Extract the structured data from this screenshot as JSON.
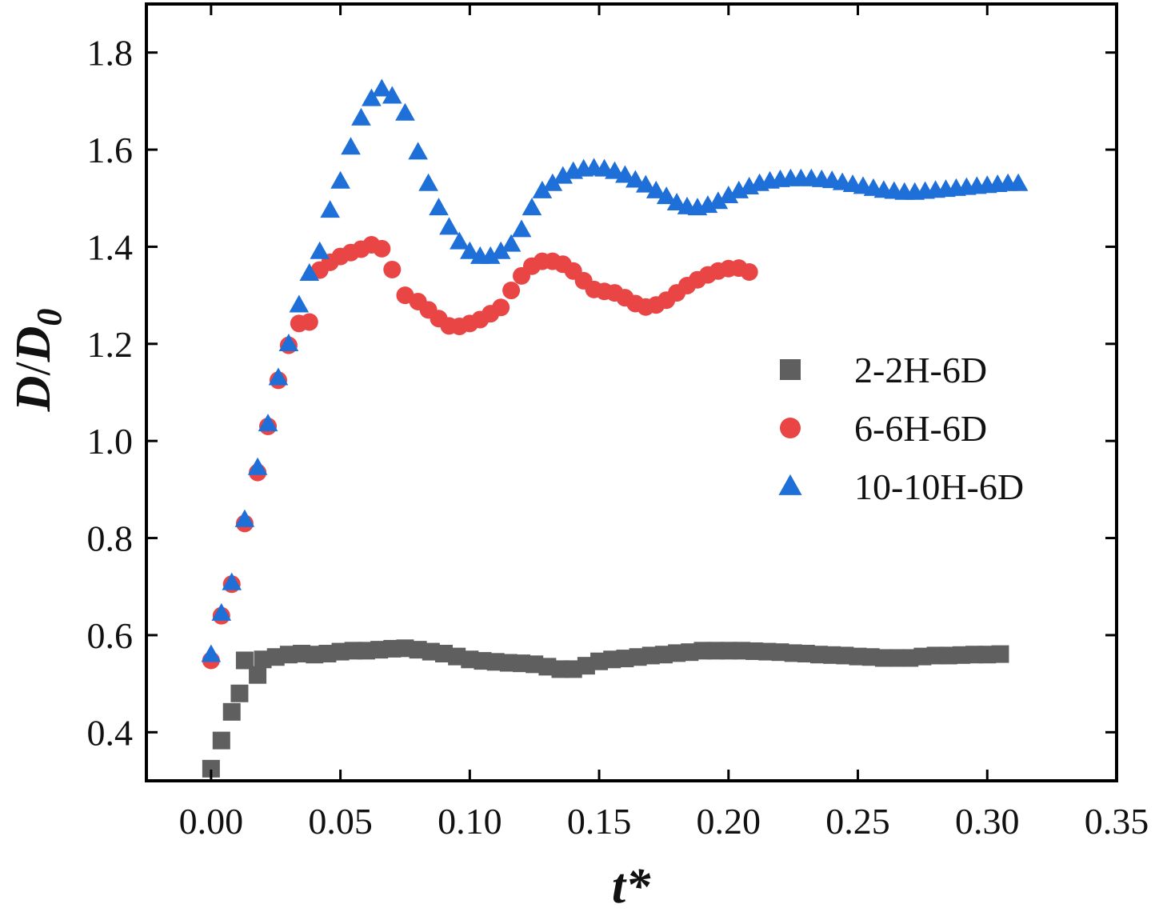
{
  "chart_data": {
    "type": "scatter",
    "xlabel": "t*",
    "ylabel_main": "D",
    "ylabel_sep": "/",
    "ylabel_den": "D",
    "ylabel_sub": "0",
    "xlim": [
      -0.025,
      0.35
    ],
    "ylim": [
      0.3,
      1.9
    ],
    "x_ticks": [
      "0.00",
      "0.05",
      "0.10",
      "0.15",
      "0.20",
      "0.25",
      "0.30",
      "0.35"
    ],
    "y_ticks": [
      "0.4",
      "0.6",
      "0.8",
      "1.0",
      "1.2",
      "1.4",
      "1.6",
      "1.8"
    ],
    "grid": false,
    "legend_position": "center-right",
    "series": [
      {
        "name": "2-2H-6D",
        "marker": "square",
        "color": "#5f5f5f",
        "points": [
          [
            0.0,
            0.325
          ],
          [
            0.004,
            0.383
          ],
          [
            0.008,
            0.442
          ],
          [
            0.011,
            0.48
          ],
          [
            0.013,
            0.548
          ],
          [
            0.018,
            0.518
          ],
          [
            0.02,
            0.55
          ],
          [
            0.025,
            0.555
          ],
          [
            0.03,
            0.56
          ],
          [
            0.035,
            0.562
          ],
          [
            0.04,
            0.56
          ],
          [
            0.045,
            0.562
          ],
          [
            0.05,
            0.566
          ],
          [
            0.055,
            0.568
          ],
          [
            0.06,
            0.568
          ],
          [
            0.065,
            0.57
          ],
          [
            0.07,
            0.572
          ],
          [
            0.075,
            0.573
          ],
          [
            0.08,
            0.57
          ],
          [
            0.085,
            0.566
          ],
          [
            0.09,
            0.562
          ],
          [
            0.095,
            0.556
          ],
          [
            0.1,
            0.55
          ],
          [
            0.105,
            0.547
          ],
          [
            0.11,
            0.545
          ],
          [
            0.115,
            0.543
          ],
          [
            0.12,
            0.542
          ],
          [
            0.125,
            0.54
          ],
          [
            0.13,
            0.535
          ],
          [
            0.135,
            0.53
          ],
          [
            0.14,
            0.53
          ],
          [
            0.145,
            0.537
          ],
          [
            0.15,
            0.546
          ],
          [
            0.155,
            0.55
          ],
          [
            0.16,
            0.552
          ],
          [
            0.165,
            0.555
          ],
          [
            0.17,
            0.558
          ],
          [
            0.175,
            0.56
          ],
          [
            0.18,
            0.563
          ],
          [
            0.185,
            0.565
          ],
          [
            0.19,
            0.568
          ],
          [
            0.195,
            0.568
          ],
          [
            0.2,
            0.568
          ],
          [
            0.205,
            0.568
          ],
          [
            0.21,
            0.567
          ],
          [
            0.215,
            0.566
          ],
          [
            0.22,
            0.565
          ],
          [
            0.225,
            0.563
          ],
          [
            0.23,
            0.562
          ],
          [
            0.235,
            0.56
          ],
          [
            0.24,
            0.559
          ],
          [
            0.245,
            0.558
          ],
          [
            0.25,
            0.556
          ],
          [
            0.255,
            0.555
          ],
          [
            0.26,
            0.553
          ],
          [
            0.265,
            0.553
          ],
          [
            0.27,
            0.553
          ],
          [
            0.275,
            0.556
          ],
          [
            0.28,
            0.558
          ],
          [
            0.285,
            0.558
          ],
          [
            0.29,
            0.559
          ],
          [
            0.295,
            0.56
          ],
          [
            0.3,
            0.56
          ],
          [
            0.305,
            0.561
          ]
        ]
      },
      {
        "name": "6-6H-6D",
        "marker": "circle",
        "color": "#e94545",
        "points": [
          [
            0.0,
            0.548
          ],
          [
            0.004,
            0.64
          ],
          [
            0.008,
            0.705
          ],
          [
            0.013,
            0.83
          ],
          [
            0.018,
            0.935
          ],
          [
            0.022,
            1.03
          ],
          [
            0.026,
            1.125
          ],
          [
            0.03,
            1.197
          ],
          [
            0.034,
            1.242
          ],
          [
            0.038,
            1.245
          ],
          [
            0.042,
            1.352
          ],
          [
            0.046,
            1.368
          ],
          [
            0.05,
            1.38
          ],
          [
            0.054,
            1.388
          ],
          [
            0.058,
            1.395
          ],
          [
            0.062,
            1.404
          ],
          [
            0.066,
            1.396
          ],
          [
            0.07,
            1.353
          ],
          [
            0.075,
            1.3
          ],
          [
            0.08,
            1.287
          ],
          [
            0.084,
            1.27
          ],
          [
            0.088,
            1.252
          ],
          [
            0.092,
            1.237
          ],
          [
            0.096,
            1.236
          ],
          [
            0.1,
            1.242
          ],
          [
            0.104,
            1.25
          ],
          [
            0.108,
            1.262
          ],
          [
            0.112,
            1.275
          ],
          [
            0.116,
            1.31
          ],
          [
            0.12,
            1.34
          ],
          [
            0.124,
            1.36
          ],
          [
            0.128,
            1.37
          ],
          [
            0.132,
            1.37
          ],
          [
            0.136,
            1.364
          ],
          [
            0.14,
            1.35
          ],
          [
            0.144,
            1.33
          ],
          [
            0.148,
            1.312
          ],
          [
            0.152,
            1.308
          ],
          [
            0.156,
            1.305
          ],
          [
            0.16,
            1.295
          ],
          [
            0.164,
            1.283
          ],
          [
            0.168,
            1.276
          ],
          [
            0.172,
            1.28
          ],
          [
            0.176,
            1.29
          ],
          [
            0.18,
            1.305
          ],
          [
            0.184,
            1.32
          ],
          [
            0.188,
            1.332
          ],
          [
            0.192,
            1.342
          ],
          [
            0.196,
            1.35
          ],
          [
            0.2,
            1.355
          ],
          [
            0.204,
            1.356
          ],
          [
            0.208,
            1.348
          ]
        ]
      },
      {
        "name": "10-10H-6D",
        "marker": "triangle",
        "color": "#1f6fd9",
        "points": [
          [
            0.0,
            0.56
          ],
          [
            0.004,
            0.645
          ],
          [
            0.008,
            0.708
          ],
          [
            0.013,
            0.838
          ],
          [
            0.018,
            0.945
          ],
          [
            0.022,
            1.035
          ],
          [
            0.026,
            1.13
          ],
          [
            0.03,
            1.2
          ],
          [
            0.034,
            1.28
          ],
          [
            0.038,
            1.345
          ],
          [
            0.042,
            1.39
          ],
          [
            0.046,
            1.475
          ],
          [
            0.05,
            1.535
          ],
          [
            0.054,
            1.605
          ],
          [
            0.058,
            1.665
          ],
          [
            0.062,
            1.705
          ],
          [
            0.066,
            1.725
          ],
          [
            0.07,
            1.71
          ],
          [
            0.075,
            1.675
          ],
          [
            0.08,
            1.595
          ],
          [
            0.084,
            1.53
          ],
          [
            0.088,
            1.48
          ],
          [
            0.092,
            1.44
          ],
          [
            0.096,
            1.41
          ],
          [
            0.1,
            1.39
          ],
          [
            0.104,
            1.38
          ],
          [
            0.108,
            1.38
          ],
          [
            0.112,
            1.39
          ],
          [
            0.116,
            1.405
          ],
          [
            0.12,
            1.435
          ],
          [
            0.124,
            1.48
          ],
          [
            0.128,
            1.515
          ],
          [
            0.132,
            1.53
          ],
          [
            0.136,
            1.545
          ],
          [
            0.14,
            1.555
          ],
          [
            0.144,
            1.56
          ],
          [
            0.148,
            1.562
          ],
          [
            0.152,
            1.56
          ],
          [
            0.156,
            1.555
          ],
          [
            0.16,
            1.547
          ],
          [
            0.164,
            1.537
          ],
          [
            0.168,
            1.527
          ],
          [
            0.172,
            1.515
          ],
          [
            0.176,
            1.503
          ],
          [
            0.18,
            1.49
          ],
          [
            0.184,
            1.482
          ],
          [
            0.188,
            1.48
          ],
          [
            0.192,
            1.485
          ],
          [
            0.196,
            1.493
          ],
          [
            0.2,
            1.505
          ],
          [
            0.204,
            1.515
          ],
          [
            0.208,
            1.523
          ],
          [
            0.212,
            1.53
          ],
          [
            0.216,
            1.535
          ],
          [
            0.22,
            1.538
          ],
          [
            0.224,
            1.54
          ],
          [
            0.228,
            1.54
          ],
          [
            0.232,
            1.54
          ],
          [
            0.236,
            1.538
          ],
          [
            0.24,
            1.536
          ],
          [
            0.244,
            1.532
          ],
          [
            0.248,
            1.528
          ],
          [
            0.252,
            1.524
          ],
          [
            0.256,
            1.52
          ],
          [
            0.26,
            1.516
          ],
          [
            0.264,
            1.514
          ],
          [
            0.268,
            1.512
          ],
          [
            0.272,
            1.512
          ],
          [
            0.276,
            1.514
          ],
          [
            0.28,
            1.516
          ],
          [
            0.284,
            1.518
          ],
          [
            0.288,
            1.52
          ],
          [
            0.292,
            1.522
          ],
          [
            0.296,
            1.524
          ],
          [
            0.3,
            1.526
          ],
          [
            0.304,
            1.528
          ],
          [
            0.308,
            1.53
          ],
          [
            0.312,
            1.53
          ]
        ]
      }
    ]
  }
}
